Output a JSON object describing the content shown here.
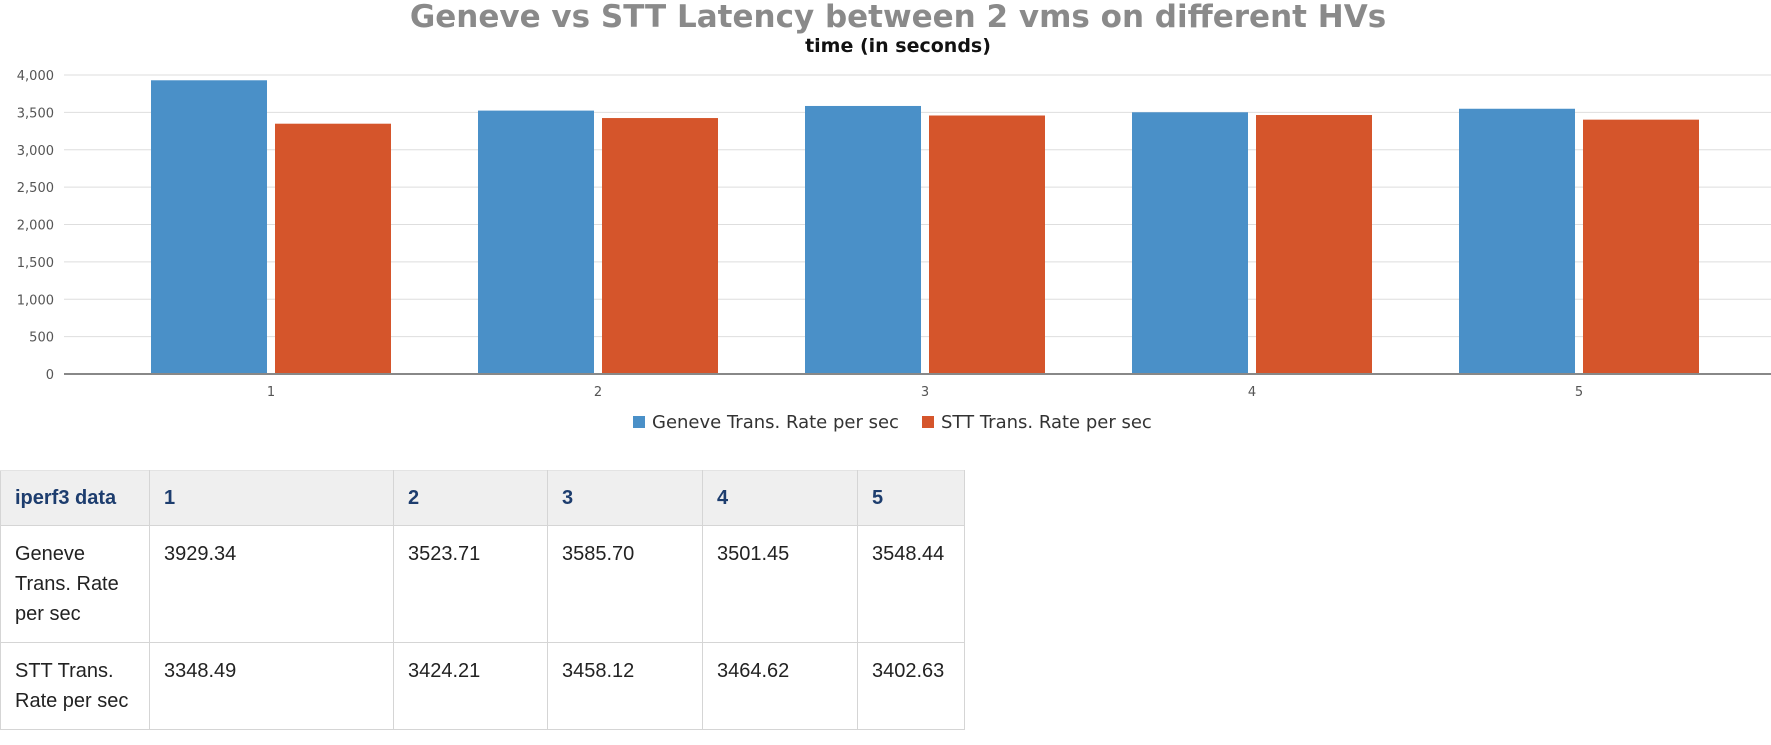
{
  "chart_data": {
    "type": "bar",
    "title": "Geneve vs STT Latency between 2 vms on different HVs",
    "subtitle": "time (in seconds)",
    "categories": [
      "1",
      "2",
      "3",
      "4",
      "5"
    ],
    "series": [
      {
        "name": "Geneve Trans. Rate per sec",
        "color": "#4a90c8",
        "values": [
          3929.34,
          3523.71,
          3585.7,
          3501.45,
          3548.44
        ]
      },
      {
        "name": "STT Trans. Rate per sec",
        "color": "#d5552b",
        "values": [
          3348.49,
          3424.21,
          3458.12,
          3464.62,
          3402.63
        ]
      }
    ],
    "ylim": [
      0,
      4000
    ],
    "yticks": [
      "0",
      "500",
      "1,000",
      "1,500",
      "2,000",
      "2,500",
      "3,000",
      "3,500",
      "4,000"
    ],
    "grid": true,
    "legend_position": "bottom-center"
  },
  "table": {
    "header": [
      "iperf3 data",
      "1",
      "2",
      "3",
      "4",
      "5"
    ],
    "rows": [
      [
        "Geneve Trans. Rate per sec",
        "3929.34",
        "3523.71",
        "3585.70",
        "3501.45",
        "3548.44"
      ],
      [
        "STT Trans. Rate per sec",
        "3348.49",
        "3424.21",
        "3458.12",
        "3464.62",
        "3402.63"
      ]
    ]
  }
}
